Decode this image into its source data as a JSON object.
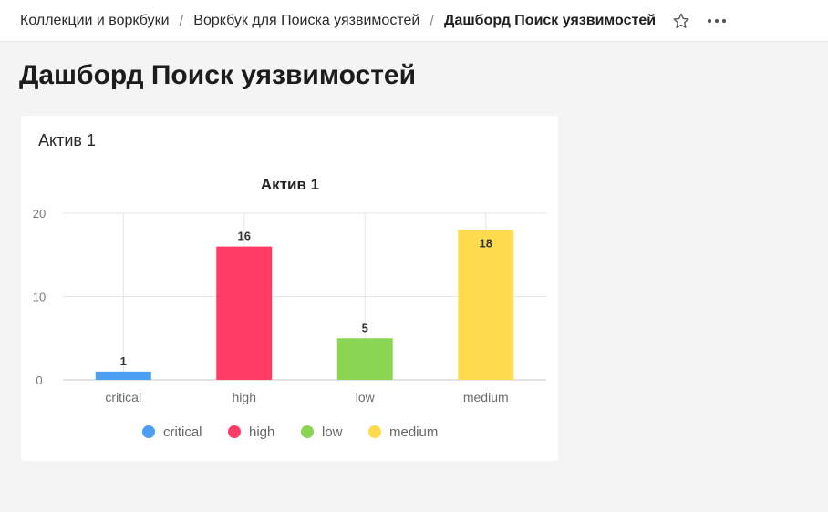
{
  "breadcrumbs": [
    "Коллекции и воркбуки",
    "Воркбук для Поиска уязвимостей",
    "Дашборд Поиск уязвимостей"
  ],
  "breadcrumb_separator": "/",
  "page_title": "Дашборд Поиск уязвимостей",
  "widget": {
    "title": "Актив 1"
  },
  "icons": {
    "favorite": "star-icon",
    "more": "more-horizontal-icon"
  },
  "chart_data": {
    "type": "bar",
    "title": "Актив 1",
    "categories": [
      "critical",
      "high",
      "low",
      "medium"
    ],
    "values": [
      1,
      16,
      5,
      18
    ],
    "colors": [
      "#4c9ef3",
      "#ff3d64",
      "#8ad554",
      "#ffdc4f"
    ],
    "ylim": [
      0,
      20
    ],
    "yticks": [
      0,
      10,
      20
    ],
    "legend": [
      "critical",
      "high",
      "low",
      "medium"
    ],
    "legend_position": "bottom",
    "grid": true
  }
}
